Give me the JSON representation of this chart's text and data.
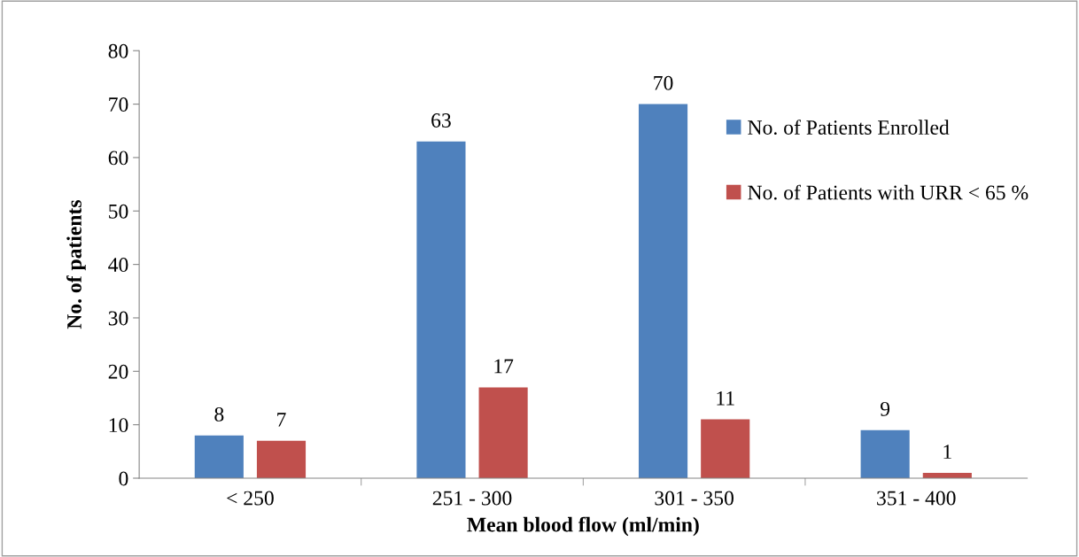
{
  "chart_data": {
    "type": "bar",
    "xlabel": "Mean blood flow (ml/min)",
    "ylabel": "No. of patients",
    "categories": [
      "< 250",
      "251 - 300",
      "301 - 350",
      "351 - 400"
    ],
    "series": [
      {
        "name": "No. of Patients Enrolled",
        "color": "#4f81bd",
        "values": [
          8,
          63,
          70,
          9
        ]
      },
      {
        "name": "No. of Patients with URR < 65 %",
        "color": "#c0504d",
        "values": [
          7,
          17,
          11,
          1
        ]
      }
    ],
    "ylim": [
      0,
      80
    ],
    "yticks": [
      0,
      10,
      20,
      30,
      40,
      50,
      60,
      70,
      80
    ],
    "data_labels": true,
    "grid": false,
    "legend": "right"
  }
}
